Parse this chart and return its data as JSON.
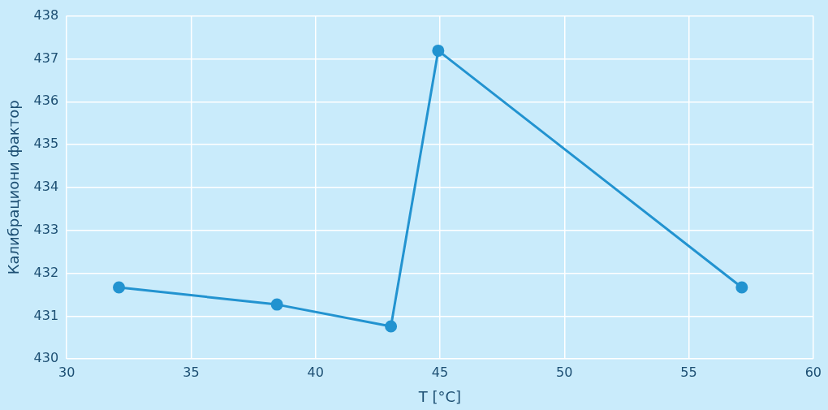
{
  "chart_data": {
    "type": "line",
    "xlabel": "T [°C]",
    "ylabel": "Калибрациони фактор",
    "x": [
      32.1,
      38.45,
      43.03,
      44.93,
      57.13
    ],
    "series": [
      {
        "color": "#2293d0",
        "values": [
          431.67,
          431.27,
          430.76,
          437.19,
          431.67
        ]
      }
    ],
    "xlim": [
      30,
      60
    ],
    "xticks": [
      30,
      35,
      40,
      45,
      50,
      55,
      60
    ],
    "ylim": [
      430,
      438
    ],
    "yticks": [
      430,
      431,
      432,
      433,
      434,
      435,
      436,
      437,
      438
    ],
    "grid": true,
    "legend": false,
    "marker": "circle",
    "line_style": "solid"
  }
}
